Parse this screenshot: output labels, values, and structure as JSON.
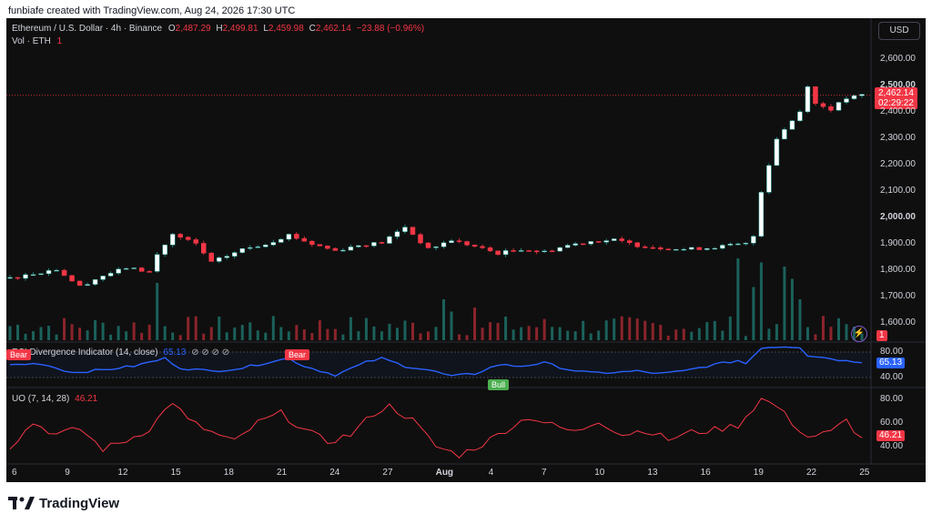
{
  "header": {
    "caption": "funbiafe created with TradingView.com, Aug 24, 2026 17:30 UTC"
  },
  "legend": {
    "symbol": "Ethereum / U.S. Dollar · 4h · Binance",
    "o_label": "O",
    "o": "2,487.29",
    "h_label": "H",
    "h": "2,499.81",
    "l_label": "L",
    "l": "2,459.98",
    "c_label": "C",
    "c": "2,462.14",
    "change": "−23.88 (−0.96%)",
    "vol_label": "Vol · ETH",
    "vol_value": "1"
  },
  "currency_button": "USD",
  "price_badge": {
    "price": "2,462.14",
    "countdown": "02:29:22"
  },
  "vol_badge": "1",
  "indicator1": {
    "title": "RSI Divergence Indicator (14, close)",
    "value": "65.13",
    "icons": "⊘ ⊘ ⊘ ⊘",
    "signals": {
      "bear": "Bear",
      "bull": "Bull"
    }
  },
  "indicator2": {
    "title": "UO (7, 14, 28)",
    "value": "46.21"
  },
  "brand": {
    "name": "TradingView"
  },
  "colors": {
    "up": "#26a69a",
    "down": "#f23645",
    "rsi": "#2962ff",
    "uo": "#f23645",
    "bg": "#0f0f0f"
  },
  "chart_data": [
    {
      "type": "candlestick",
      "title": "Ethereum / U.S. Dollar · 4h · Binance",
      "ylim": [
        1550,
        2650
      ],
      "y_ticks": [
        "2,600.00",
        "2,500.00",
        "2,400.00",
        "2,300.00",
        "2,200.00",
        "2,100.00",
        "2,000.00",
        "1,900.00",
        "1,800.00",
        "1,700.00",
        "1,600.00"
      ],
      "x_ticks": [
        "6",
        "9",
        "12",
        "15",
        "18",
        "21",
        "24",
        "27",
        "Aug",
        "4",
        "7",
        "10",
        "13",
        "16",
        "19",
        "22",
        "25"
      ],
      "close_anchors": [
        [
          0,
          1770
        ],
        [
          6,
          1805
        ],
        [
          9,
          1740
        ],
        [
          12,
          1780
        ],
        [
          15,
          1810
        ],
        [
          18,
          1795
        ],
        [
          19,
          1860
        ],
        [
          21,
          1935
        ],
        [
          24,
          1900
        ],
        [
          26,
          1830
        ],
        [
          28,
          1855
        ],
        [
          30,
          1880
        ],
        [
          33,
          1900
        ],
        [
          36,
          1935
        ],
        [
          39,
          1900
        ],
        [
          42,
          1875
        ],
        [
          45,
          1895
        ],
        [
          48,
          1905
        ],
        [
          51,
          1965
        ],
        [
          54,
          1880
        ],
        [
          57,
          1915
        ],
        [
          60,
          1890
        ],
        [
          63,
          1865
        ],
        [
          66,
          1880
        ],
        [
          69,
          1870
        ],
        [
          72,
          1895
        ],
        [
          75,
          1910
        ],
        [
          78,
          1915
        ],
        [
          81,
          1895
        ],
        [
          84,
          1885
        ],
        [
          87,
          1880
        ],
        [
          90,
          1885
        ],
        [
          93,
          1895
        ],
        [
          95,
          1900
        ],
        [
          96,
          1930
        ],
        [
          97,
          2100
        ],
        [
          99,
          2300
        ],
        [
          102,
          2400
        ],
        [
          103,
          2500
        ],
        [
          104,
          2430
        ],
        [
          106,
          2410
        ],
        [
          108,
          2450
        ],
        [
          110,
          2462
        ]
      ],
      "volume_spikes": [
        [
          94,
          1.0
        ],
        [
          96,
          0.65
        ],
        [
          97,
          0.95
        ],
        [
          100,
          0.9
        ],
        [
          101,
          0.75
        ],
        [
          19,
          0.7
        ],
        [
          56,
          0.5
        ],
        [
          57,
          0.35
        ],
        [
          60,
          0.4
        ],
        [
          102,
          0.5
        ]
      ],
      "last_price": 2462.14
    },
    {
      "type": "line",
      "title": "RSI Divergence Indicator (14, close)",
      "y_ticks": [
        "80.00",
        "40.00"
      ],
      "ylim": [
        30,
        90
      ],
      "anchors": [
        [
          0,
          60
        ],
        [
          4,
          62
        ],
        [
          8,
          48
        ],
        [
          12,
          52
        ],
        [
          16,
          58
        ],
        [
          20,
          70
        ],
        [
          22,
          55
        ],
        [
          26,
          50
        ],
        [
          30,
          55
        ],
        [
          34,
          66
        ],
        [
          36,
          70
        ],
        [
          38,
          58
        ],
        [
          42,
          44
        ],
        [
          46,
          64
        ],
        [
          48,
          70
        ],
        [
          51,
          58
        ],
        [
          54,
          52
        ],
        [
          57,
          42
        ],
        [
          60,
          46
        ],
        [
          63,
          60
        ],
        [
          66,
          58
        ],
        [
          69,
          63
        ],
        [
          72,
          53
        ],
        [
          75,
          47
        ],
        [
          78,
          48
        ],
        [
          81,
          50
        ],
        [
          84,
          46
        ],
        [
          87,
          50
        ],
        [
          90,
          58
        ],
        [
          94,
          67
        ],
        [
          95,
          62
        ],
        [
          97,
          87
        ],
        [
          100,
          89
        ],
        [
          102,
          88
        ],
        [
          103,
          75
        ],
        [
          106,
          70
        ],
        [
          108,
          66
        ],
        [
          110,
          65
        ]
      ],
      "last_value": 65.13
    },
    {
      "type": "line",
      "title": "UO (7, 14, 28)",
      "y_ticks": [
        "80.00",
        "60.00",
        "40.00"
      ],
      "ylim": [
        30,
        85
      ],
      "anchors": [
        [
          0,
          40
        ],
        [
          3,
          60
        ],
        [
          6,
          50
        ],
        [
          9,
          55
        ],
        [
          12,
          38
        ],
        [
          15,
          45
        ],
        [
          18,
          55
        ],
        [
          21,
          78
        ],
        [
          23,
          62
        ],
        [
          26,
          52
        ],
        [
          29,
          44
        ],
        [
          32,
          60
        ],
        [
          35,
          68
        ],
        [
          38,
          54
        ],
        [
          41,
          44
        ],
        [
          44,
          50
        ],
        [
          47,
          68
        ],
        [
          49,
          74
        ],
        [
          52,
          62
        ],
        [
          55,
          40
        ],
        [
          58,
          33
        ],
        [
          61,
          42
        ],
        [
          64,
          54
        ],
        [
          67,
          65
        ],
        [
          70,
          58
        ],
        [
          73,
          52
        ],
        [
          76,
          62
        ],
        [
          79,
          50
        ],
        [
          82,
          54
        ],
        [
          85,
          46
        ],
        [
          88,
          52
        ],
        [
          91,
          54
        ],
        [
          94,
          58
        ],
        [
          97,
          80
        ],
        [
          99,
          74
        ],
        [
          101,
          60
        ],
        [
          103,
          48
        ],
        [
          106,
          52
        ],
        [
          108,
          62
        ],
        [
          110,
          46
        ]
      ],
      "last_value": 46.21
    }
  ]
}
